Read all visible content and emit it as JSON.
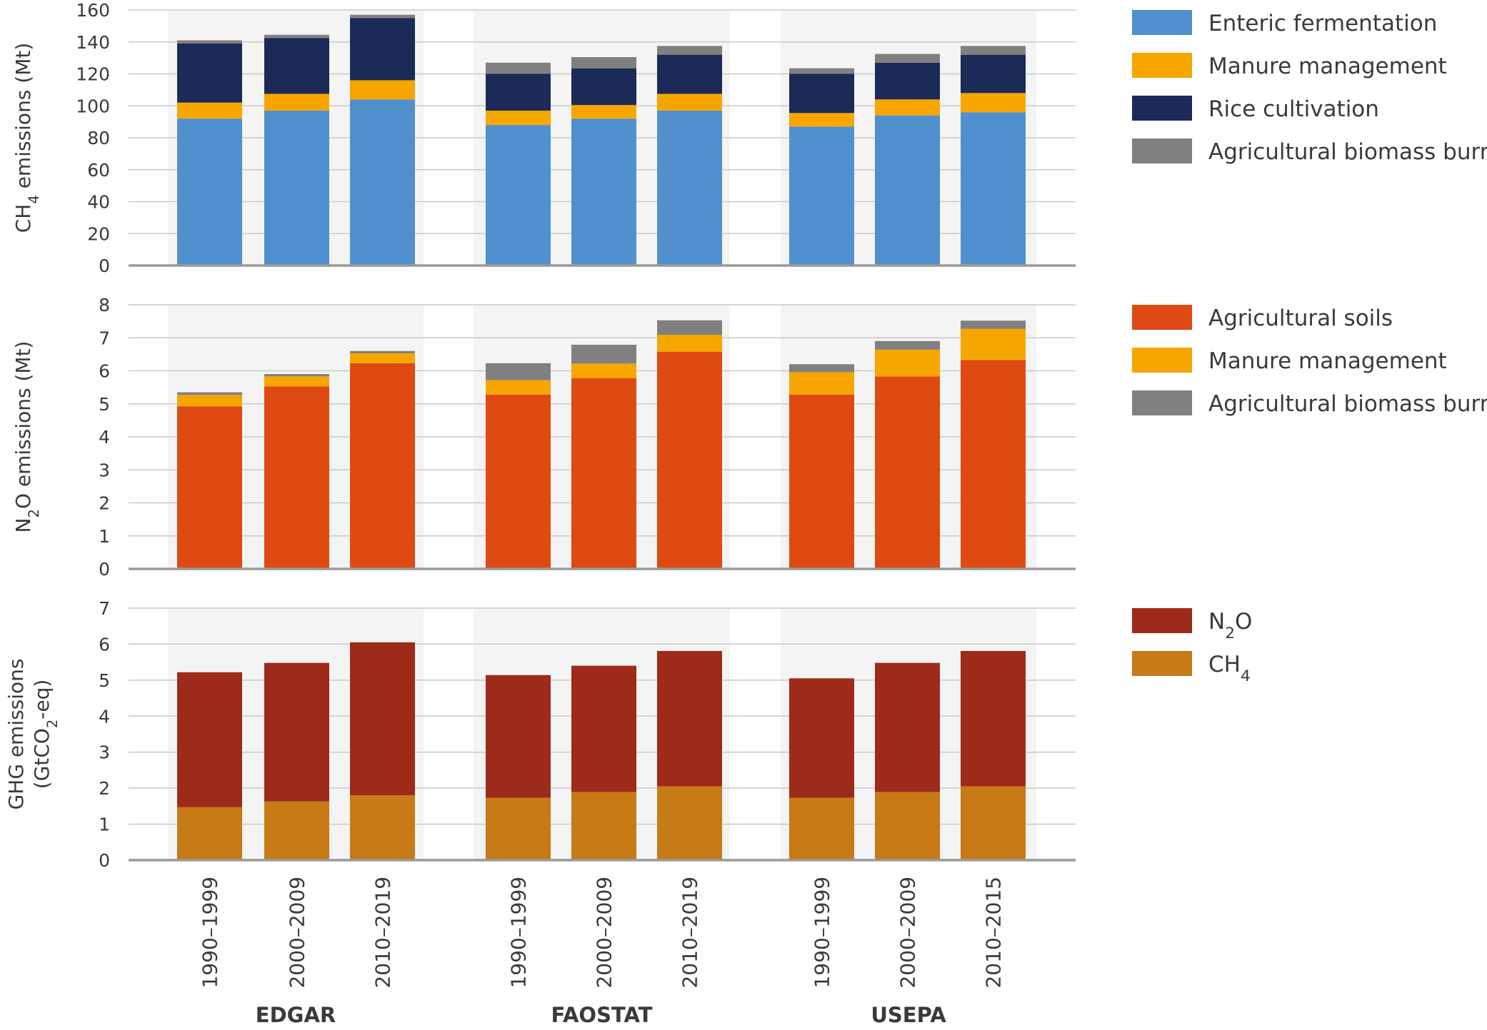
{
  "chart_data": [
    {
      "type": "bar",
      "stacked": true,
      "title": "",
      "ylabel": {
        "main": "CH",
        "sub": "4",
        "rest": " emissions (Mt)"
      },
      "ylim": [
        0,
        160
      ],
      "yticks": [
        0,
        20,
        40,
        60,
        80,
        100,
        120,
        140,
        160
      ],
      "groups": [
        {
          "name": "EDGAR",
          "categories": [
            "1990–1999",
            "2000–2009",
            "2010–2019"
          ]
        },
        {
          "name": "FAOSTAT",
          "categories": [
            "1990–1999",
            "2000–2009",
            "2010–2019"
          ]
        },
        {
          "name": "USEPA",
          "categories": [
            "1990–1999",
            "2000–2009",
            "2010–2015"
          ]
        }
      ],
      "series": [
        {
          "name": {
            "main": "Enteric fermentation"
          },
          "color": "#5090cf",
          "values": [
            92,
            97,
            104,
            88,
            92,
            97,
            87,
            94,
            96
          ]
        },
        {
          "name": {
            "main": "Manure management"
          },
          "color": "#f7a600",
          "values": [
            10,
            10.5,
            12,
            9,
            8.5,
            10.5,
            8.5,
            10,
            12
          ]
        },
        {
          "name": {
            "main": "Rice cultivation"
          },
          "color": "#1b2a56",
          "values": [
            37,
            35,
            39,
            23,
            23,
            24.5,
            24.5,
            23,
            24
          ]
        },
        {
          "name": {
            "main": "Agricultural biomass burning"
          },
          "color": "#808080",
          "values": [
            2,
            2,
            2,
            7,
            7,
            5.5,
            3.5,
            5.5,
            5.5
          ]
        }
      ],
      "legend": "right"
    },
    {
      "type": "bar",
      "stacked": true,
      "title": "",
      "ylabel": {
        "main": "N",
        "sub": "2",
        "rest": "O emissions (Mt)"
      },
      "ylim": [
        0,
        8
      ],
      "yticks": [
        0,
        1,
        2,
        3,
        4,
        5,
        6,
        7,
        8
      ],
      "groups": [
        {
          "name": "EDGAR",
          "categories": [
            "1990–1999",
            "2000–2009",
            "2010–2019"
          ]
        },
        {
          "name": "FAOSTAT",
          "categories": [
            "1990–1999",
            "2000–2009",
            "2010–2019"
          ]
        },
        {
          "name": "USEPA",
          "categories": [
            "1990–1999",
            "2000–2009",
            "2010–2015"
          ]
        }
      ],
      "series": [
        {
          "name": {
            "main": "Agricultural soils"
          },
          "color": "#de4a12",
          "values": [
            4.92,
            5.53,
            6.23,
            5.28,
            5.78,
            6.58,
            5.28,
            5.83,
            6.33
          ]
        },
        {
          "name": {
            "main": "Manure management"
          },
          "color": "#f7a600",
          "values": [
            0.35,
            0.3,
            0.3,
            0.44,
            0.44,
            0.51,
            0.68,
            0.81,
            0.94
          ]
        },
        {
          "name": {
            "main": "Agricultural biomass burning"
          },
          "color": "#808080",
          "values": [
            0.08,
            0.07,
            0.07,
            0.51,
            0.57,
            0.44,
            0.24,
            0.26,
            0.25
          ]
        }
      ],
      "legend": "right"
    },
    {
      "type": "bar",
      "stacked": true,
      "title": "",
      "ylabel": {
        "main": "GHG emissions",
        "line2main": "(GtCO",
        "line2sub": "2",
        "line2rest": "-eq)"
      },
      "ylim": [
        0,
        7
      ],
      "yticks": [
        0,
        1,
        2,
        3,
        4,
        5,
        6,
        7
      ],
      "groups": [
        {
          "name": "EDGAR",
          "categories": [
            "1990–1999",
            "2000–2009",
            "2010–2019"
          ]
        },
        {
          "name": "FAOSTAT",
          "categories": [
            "1990–1999",
            "2000–2009",
            "2010–2019"
          ]
        },
        {
          "name": "USEPA",
          "categories": [
            "1990–1999",
            "2000–2009",
            "2010–2015"
          ]
        }
      ],
      "series": [
        {
          "name": {
            "main": "CH",
            "sub": "4"
          },
          "color": "#c77a15",
          "values": [
            1.47,
            1.63,
            1.8,
            1.73,
            1.89,
            2.05,
            1.73,
            1.89,
            2.05
          ]
        },
        {
          "name": {
            "main": "N",
            "sub": "2",
            "rest": "O"
          },
          "color": "#9e2a19",
          "values": [
            3.75,
            3.85,
            4.25,
            3.41,
            3.51,
            3.76,
            3.32,
            3.59,
            3.76
          ]
        }
      ],
      "legend_order": [
        1,
        0
      ],
      "legend": "right"
    }
  ]
}
